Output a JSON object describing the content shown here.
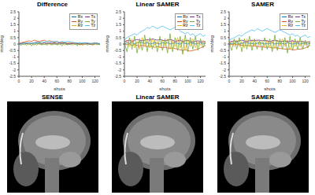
{
  "chart_data": [
    {
      "type": "line",
      "title": "Difference",
      "x_label": "shots",
      "y_label": "mm/deg",
      "x": [
        0,
        4,
        8,
        12,
        16,
        20,
        24,
        28,
        32,
        36,
        40,
        44,
        48,
        52,
        56,
        60,
        64,
        68,
        72,
        76,
        80,
        84,
        88,
        92,
        96,
        100,
        104,
        108,
        112,
        116,
        120,
        124,
        128
      ],
      "xlim": [
        0,
        128
      ],
      "xticks": [
        0,
        20,
        40,
        60,
        80,
        100,
        120
      ],
      "ylim": [
        -2.5,
        2.5
      ],
      "yticks": [
        -2.5,
        -2,
        -1.5,
        -1,
        -0.5,
        0,
        0.5,
        1,
        1.5,
        2,
        2.5
      ],
      "grid": false,
      "legend": "upper right",
      "series": [
        {
          "name": "Rx",
          "color": "#0072BD",
          "values": [
            0,
            0.02,
            -0.02,
            0.03,
            0,
            0.02,
            -0.01,
            0.03,
            0.02,
            0,
            -0.02,
            0.01,
            0.03,
            0,
            0.02,
            -0.01,
            0,
            0.02,
            0.01,
            -0.02,
            0,
            0.03,
            0.01,
            0,
            -0.01,
            0.02,
            0,
            0.01,
            -0.02,
            0,
            0.02,
            0.01,
            0
          ]
        },
        {
          "name": "Ry",
          "color": "#D95319",
          "values": [
            0.05,
            0.1,
            0.15,
            0.2,
            0.25,
            0.2,
            0.3,
            0.25,
            0.2,
            0.25,
            0.3,
            0.2,
            0.25,
            0.2,
            0.15,
            0.2,
            0.1,
            0.15,
            0.1,
            0.05,
            0.1,
            0.05,
            0,
            0.05,
            0,
            -0.05,
            0,
            0.05,
            0,
            -0.05,
            0,
            0.05,
            0
          ]
        },
        {
          "name": "Rz",
          "color": "#EDB120",
          "values": [
            0,
            0.05,
            -0.05,
            0.1,
            -0.05,
            0.05,
            -0.1,
            0.1,
            -0.05,
            0.05,
            -0.05,
            0.1,
            0,
            0.05,
            -0.05,
            0.05,
            -0.05,
            0.1,
            -0.1,
            0.05,
            -0.05,
            0.1,
            -0.05,
            0.1,
            -0.1,
            0.05,
            -0.05,
            0.1,
            -0.05,
            0.05,
            0,
            0.05,
            0
          ]
        },
        {
          "name": "Tx",
          "color": "#7E2F8E",
          "values": [
            0,
            0.05,
            0.1,
            0.05,
            0.1,
            0.05,
            0.1,
            0.15,
            0.1,
            0.05,
            0.1,
            0.05,
            0.1,
            0.05,
            0.1,
            0.05,
            0.1,
            0.05,
            0.1,
            0.05,
            0,
            0.05,
            0.1,
            0.05,
            0,
            0.05,
            0.1,
            0.05,
            0,
            0.05,
            0.1,
            0.05,
            0
          ]
        },
        {
          "name": "Ty",
          "color": "#77AC30",
          "values": [
            0,
            -0.1,
            0.1,
            -0.1,
            0.1,
            -0.15,
            0.1,
            -0.1,
            0.15,
            -0.1,
            0.1,
            -0.1,
            0.05,
            -0.1,
            0.1,
            -0.1,
            0.1,
            -0.15,
            0.15,
            -0.1,
            0.1,
            -0.1,
            0.1,
            -0.15,
            0.15,
            -0.1,
            0.1,
            -0.1,
            0.1,
            -0.1,
            0.05,
            -0.05,
            0
          ]
        },
        {
          "name": "Tz",
          "color": "#4DBEEE",
          "values": [
            0,
            0,
            0.05,
            0.1,
            0.1,
            0.05,
            0.1,
            0.1,
            0.15,
            0.2,
            0.15,
            0.2,
            0.2,
            0.15,
            0.2,
            0.2,
            0.15,
            0.2,
            0.15,
            0.2,
            0.2,
            0.15,
            0.1,
            0.1,
            0.05,
            0.1,
            0.05,
            0.1,
            0.05,
            0.05,
            0.1,
            0.05,
            0.05
          ]
        }
      ]
    },
    {
      "type": "line",
      "title": "Linear SAMER",
      "x_label": "shots",
      "y_label": "mm/deg",
      "x": [
        0,
        4,
        8,
        12,
        16,
        20,
        24,
        28,
        32,
        36,
        40,
        44,
        48,
        52,
        56,
        60,
        64,
        68,
        72,
        76,
        80,
        84,
        88,
        92,
        96,
        100,
        104,
        108,
        112,
        116,
        120,
        124,
        128
      ],
      "xlim": [
        0,
        128
      ],
      "xticks": [
        0,
        20,
        40,
        60,
        80,
        100,
        120
      ],
      "ylim": [
        -2.5,
        2.5
      ],
      "yticks": [
        -2.5,
        -2,
        -1.5,
        -1,
        -0.5,
        0,
        0.5,
        1,
        1.5,
        2,
        2.5
      ],
      "grid": false,
      "legend": "upper right",
      "series": [
        {
          "name": "Rx",
          "color": "#0072BD",
          "values": [
            0,
            0.1,
            0.05,
            0.1,
            0,
            0.1,
            0.15,
            0.1,
            0.05,
            0.1,
            0,
            0.05,
            0.1,
            0.05,
            0,
            0.1,
            0.05,
            0.1,
            0,
            0.05,
            0.1,
            0.05,
            0,
            0.1,
            0.05,
            0,
            0.1,
            0.05,
            0,
            0.05,
            0.1,
            0,
            0.05
          ]
        },
        {
          "name": "Ry",
          "color": "#D95319",
          "values": [
            0,
            -0.05,
            0,
            -0.1,
            -0.05,
            -0.1,
            -0.15,
            -0.1,
            -0.15,
            -0.2,
            -0.15,
            -0.2,
            -0.25,
            -0.2,
            -0.25,
            -0.3,
            -0.25,
            -0.3,
            -0.35,
            -0.3,
            -0.35,
            -0.4,
            -0.45,
            -0.5,
            -0.45,
            -0.5,
            -0.55,
            -0.5,
            -0.45,
            -0.4,
            -0.3,
            -0.2,
            -0.1
          ]
        },
        {
          "name": "Rz",
          "color": "#EDB120",
          "values": [
            0,
            0.3,
            -0.2,
            0.4,
            -0.3,
            0.2,
            -0.4,
            0.5,
            -0.2,
            0.3,
            -0.3,
            0.4,
            -0.1,
            0.2,
            -0.3,
            0.3,
            -0.2,
            0.4,
            -0.4,
            0.3,
            -0.2,
            0.5,
            -0.3,
            0.4,
            -0.5,
            0.3,
            -0.2,
            0.4,
            -0.3,
            0.2,
            -0.1,
            0.3,
            0
          ]
        },
        {
          "name": "Tx",
          "color": "#7E2F8E",
          "values": [
            0.2,
            0.25,
            0.3,
            0.2,
            0.3,
            0.35,
            0.3,
            0.25,
            0.3,
            0.35,
            0.3,
            0.4,
            0.35,
            0.3,
            0.35,
            0.3,
            0.25,
            0.3,
            0.35,
            0.3,
            0.2,
            0.25,
            0.3,
            0.2,
            0.25,
            0.3,
            0.2,
            0.15,
            0.2,
            0.25,
            0.2,
            0.15,
            0.2
          ]
        },
        {
          "name": "Ty",
          "color": "#77AC30",
          "values": [
            0.1,
            -0.6,
            0.5,
            -0.4,
            0.6,
            -0.7,
            0.4,
            -0.5,
            0.7,
            -0.6,
            0.5,
            -0.4,
            0.3,
            -0.6,
            0.6,
            -0.5,
            0.4,
            -0.7,
            0.8,
            -0.6,
            0.5,
            -0.5,
            0.6,
            -0.8,
            0.7,
            -0.6,
            0.5,
            -0.4,
            0.6,
            -0.5,
            0.4,
            -0.3,
            0.2
          ]
        },
        {
          "name": "Tz",
          "color": "#4DBEEE",
          "values": [
            0.3,
            0.5,
            0.6,
            0.7,
            0.8,
            0.7,
            0.9,
            1.0,
            1.1,
            1.3,
            1.2,
            1.4,
            1.3,
            1.2,
            1.3,
            1.4,
            1.3,
            1.2,
            1.1,
            1.2,
            1.3,
            1.2,
            1.0,
            0.9,
            0.8,
            0.9,
            0.7,
            0.8,
            0.6,
            0.7,
            0.8,
            0.6,
            0.7
          ]
        }
      ]
    },
    {
      "type": "line",
      "title": "SAMER",
      "x_label": "shots",
      "y_label": "mm/deg",
      "x": [
        0,
        4,
        8,
        12,
        16,
        20,
        24,
        28,
        32,
        36,
        40,
        44,
        48,
        52,
        56,
        60,
        64,
        68,
        72,
        76,
        80,
        84,
        88,
        92,
        96,
        100,
        104,
        108,
        112,
        116,
        120,
        124,
        128
      ],
      "xlim": [
        0,
        128
      ],
      "xticks": [
        0,
        20,
        40,
        60,
        80,
        100,
        120
      ],
      "ylim": [
        -2.5,
        2.5
      ],
      "yticks": [
        -2.5,
        -2,
        -1.5,
        -1,
        -0.5,
        0,
        0.5,
        1,
        1.5,
        2,
        2.5
      ],
      "grid": false,
      "legend": "upper right",
      "series": [
        {
          "name": "Rx",
          "color": "#0072BD",
          "values": [
            0,
            0.05,
            0.05,
            0.1,
            0,
            0.05,
            0.1,
            0.1,
            0.05,
            0.05,
            0,
            0.05,
            0.1,
            0.05,
            0,
            0.05,
            0.05,
            0.1,
            0,
            0.05,
            0.05,
            0.05,
            0,
            0.1,
            0.05,
            0,
            0.05,
            0.05,
            0,
            0.05,
            0.05,
            0,
            0.05
          ]
        },
        {
          "name": "Ry",
          "color": "#D95319",
          "values": [
            0,
            -0.05,
            0,
            -0.05,
            -0.05,
            -0.1,
            -0.1,
            -0.1,
            -0.15,
            -0.15,
            -0.15,
            -0.2,
            -0.2,
            -0.2,
            -0.25,
            -0.25,
            -0.25,
            -0.3,
            -0.3,
            -0.3,
            -0.35,
            -0.35,
            -0.4,
            -0.4,
            -0.4,
            -0.45,
            -0.45,
            -0.4,
            -0.4,
            -0.35,
            -0.3,
            -0.2,
            -0.1
          ]
        },
        {
          "name": "Rz",
          "color": "#EDB120",
          "values": [
            0,
            0.2,
            -0.2,
            0.3,
            -0.2,
            0.2,
            -0.3,
            0.4,
            -0.2,
            0.3,
            -0.2,
            0.3,
            -0.1,
            0.2,
            -0.2,
            0.3,
            -0.2,
            0.3,
            -0.3,
            0.3,
            -0.2,
            0.4,
            -0.2,
            0.3,
            -0.4,
            0.3,
            -0.2,
            0.3,
            -0.2,
            0.2,
            -0.1,
            0.2,
            0
          ]
        },
        {
          "name": "Tx",
          "color": "#7E2F8E",
          "values": [
            0.15,
            0.2,
            0.25,
            0.2,
            0.25,
            0.3,
            0.25,
            0.2,
            0.25,
            0.3,
            0.25,
            0.3,
            0.3,
            0.25,
            0.3,
            0.25,
            0.2,
            0.25,
            0.3,
            0.25,
            0.2,
            0.2,
            0.25,
            0.2,
            0.2,
            0.25,
            0.2,
            0.15,
            0.2,
            0.2,
            0.15,
            0.15,
            0.2
          ]
        },
        {
          "name": "Ty",
          "color": "#77AC30",
          "values": [
            0.1,
            -0.5,
            0.4,
            -0.4,
            0.5,
            -0.6,
            0.4,
            -0.4,
            0.6,
            -0.5,
            0.4,
            -0.4,
            0.3,
            -0.5,
            0.5,
            -0.4,
            0.4,
            -0.6,
            0.7,
            -0.5,
            0.4,
            -0.4,
            0.5,
            -0.7,
            0.6,
            -0.5,
            0.4,
            -0.4,
            0.5,
            -0.4,
            0.3,
            -0.3,
            0.2
          ]
        },
        {
          "name": "Tz",
          "color": "#4DBEEE",
          "values": [
            0.3,
            0.4,
            0.5,
            0.6,
            0.7,
            0.6,
            0.8,
            0.9,
            1.0,
            1.1,
            1.0,
            1.2,
            1.1,
            1.0,
            1.1,
            1.2,
            1.1,
            1.0,
            0.9,
            1.0,
            1.1,
            1.0,
            0.9,
            0.8,
            0.7,
            0.8,
            0.6,
            0.7,
            0.5,
            0.6,
            0.7,
            0.5,
            0.6
          ]
        }
      ]
    }
  ],
  "images": [
    {
      "title": "SENSE"
    },
    {
      "title": "Linear SAMER"
    },
    {
      "title": "SAMER"
    }
  ]
}
